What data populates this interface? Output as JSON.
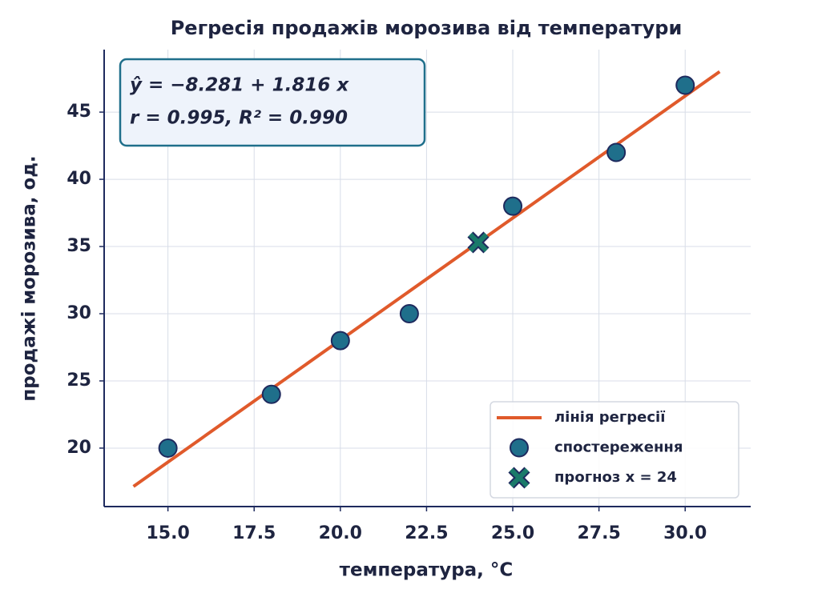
{
  "chart_data": {
    "type": "scatter",
    "title": "Регресія продажів морозива від температури",
    "xlabel": "температура, °C",
    "ylabel": "продажі морозива, од.",
    "annotation": [
      "ŷ = −8.281 + 1.816 x",
      "r = 0.995,  R² = 0.990"
    ],
    "xlim": [
      13.15,
      31.9
    ],
    "ylim": [
      15.65,
      49.65
    ],
    "xticks": [
      {
        "value": 15,
        "label": "15.0"
      },
      {
        "value": 17.5,
        "label": "17.5"
      },
      {
        "value": 20,
        "label": "20.0"
      },
      {
        "value": 22.5,
        "label": "22.5"
      },
      {
        "value": 25,
        "label": "25.0"
      },
      {
        "value": 27.5,
        "label": "27.5"
      },
      {
        "value": 30,
        "label": "30.0"
      }
    ],
    "yticks": [
      20,
      25,
      30,
      35,
      40,
      45
    ],
    "grid": true,
    "legend": "lower right",
    "series": [
      {
        "name": "лінія регресії",
        "style": "line",
        "color": "#e05a2b",
        "x": [
          14,
          31
        ],
        "values": [
          17.143,
          48.015
        ]
      },
      {
        "name": "спостереження",
        "style": "points",
        "marker": "circle",
        "color": "#1f6f8b",
        "x": [
          15,
          18,
          20,
          22,
          25,
          28,
          30
        ],
        "values": [
          20,
          24,
          28,
          30,
          38,
          42,
          47
        ]
      },
      {
        "name": "прогноз x = 24",
        "style": "points",
        "marker": "x",
        "color": "#1a7a6a",
        "x": [
          24
        ],
        "values": [
          35.303
        ]
      }
    ]
  }
}
